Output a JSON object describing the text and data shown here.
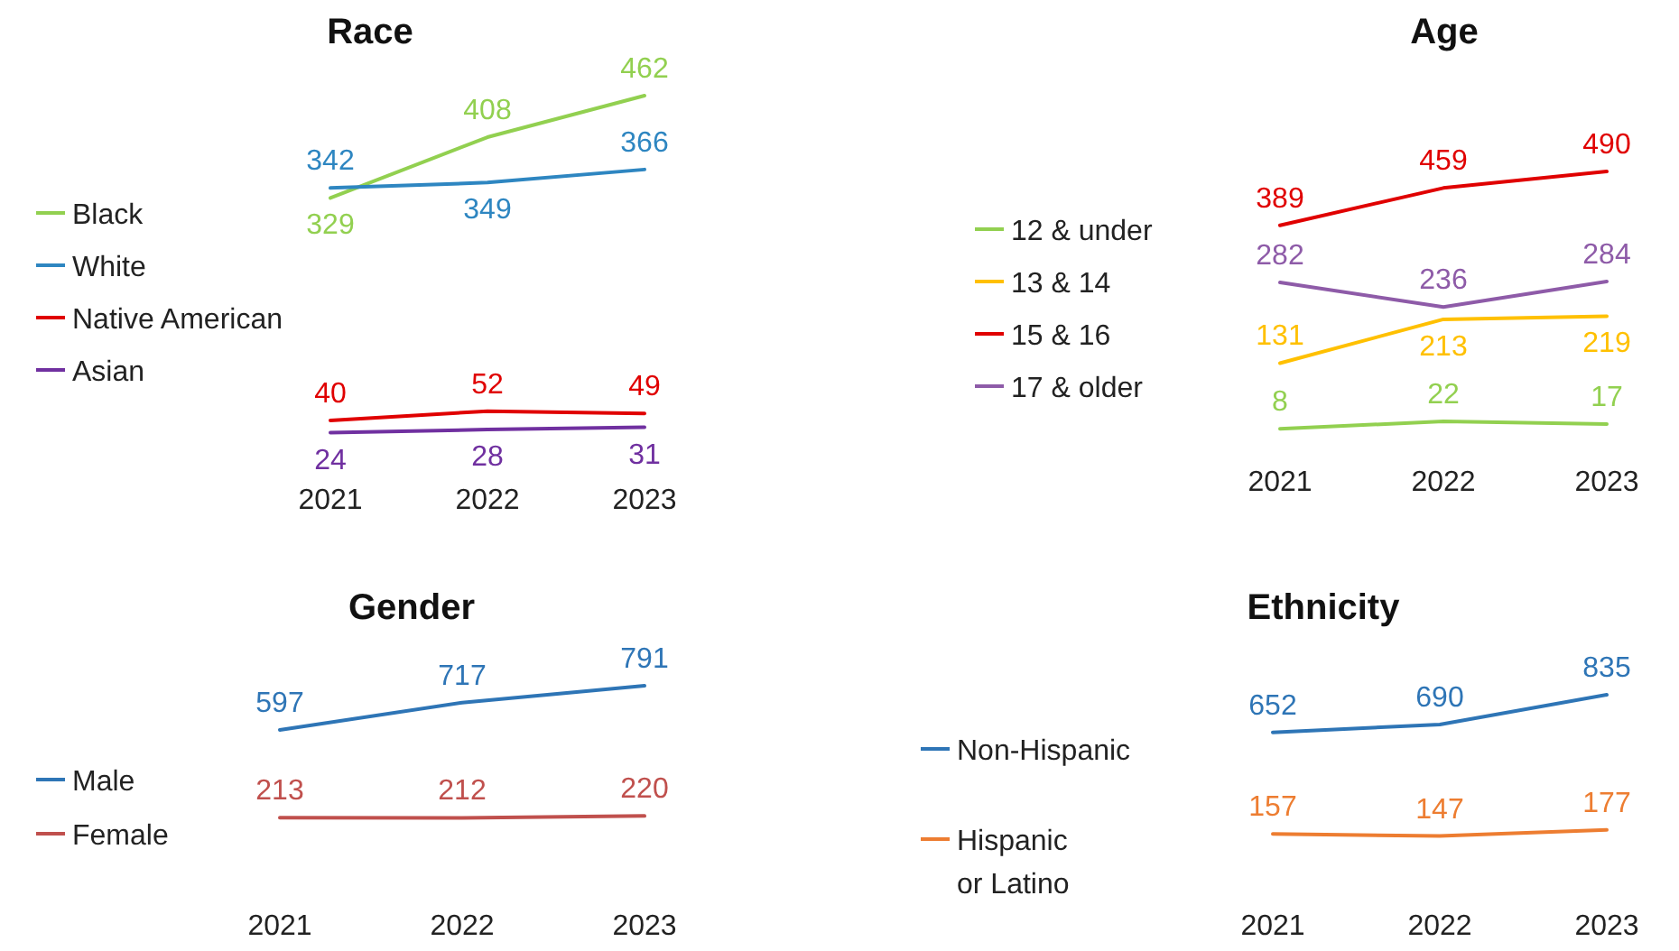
{
  "chart_data": [
    {
      "type": "line",
      "title": "Race",
      "categories": [
        "2021",
        "2022",
        "2023"
      ],
      "data_labels": true,
      "legend": "left",
      "series": [
        {
          "name": "Black",
          "color": "#92d050",
          "values": [
            329,
            408,
            462
          ]
        },
        {
          "name": "White",
          "color": "#2e86c1",
          "values": [
            342,
            349,
            366
          ]
        },
        {
          "name": "Native American",
          "color": "#e00000",
          "values": [
            40,
            52,
            49
          ]
        },
        {
          "name": "Asian",
          "color": "#7030a0",
          "values": [
            24,
            28,
            31
          ]
        }
      ]
    },
    {
      "type": "line",
      "title": "Age",
      "categories": [
        "2021",
        "2022",
        "2023"
      ],
      "data_labels": true,
      "legend": "left",
      "series": [
        {
          "name": "12 & under",
          "color": "#92d050",
          "values": [
            8,
            22,
            17
          ]
        },
        {
          "name": "13 & 14",
          "color": "#ffc000",
          "values": [
            131,
            213,
            219
          ]
        },
        {
          "name": "15 & 16",
          "color": "#e00000",
          "values": [
            389,
            459,
            490
          ]
        },
        {
          "name": "17 & older",
          "color": "#8e5ba8",
          "values": [
            282,
            236,
            284
          ]
        }
      ]
    },
    {
      "type": "line",
      "title": "Gender",
      "categories": [
        "2021",
        "2022",
        "2023"
      ],
      "data_labels": true,
      "legend": "left",
      "series": [
        {
          "name": "Male",
          "color": "#2e75b6",
          "values": [
            597,
            717,
            791
          ]
        },
        {
          "name": "Female",
          "color": "#c0504d",
          "values": [
            213,
            212,
            220
          ]
        }
      ]
    },
    {
      "type": "line",
      "title": "Ethnicity",
      "categories": [
        "2021",
        "2022",
        "2023"
      ],
      "data_labels": true,
      "legend": "left",
      "series": [
        {
          "name": "Non-Hispanic",
          "color": "#2e75b6",
          "values": [
            652,
            690,
            835
          ]
        },
        {
          "name": "Hispanic or Latino",
          "color": "#ed7d31",
          "values": [
            157,
            147,
            177
          ]
        }
      ]
    }
  ]
}
